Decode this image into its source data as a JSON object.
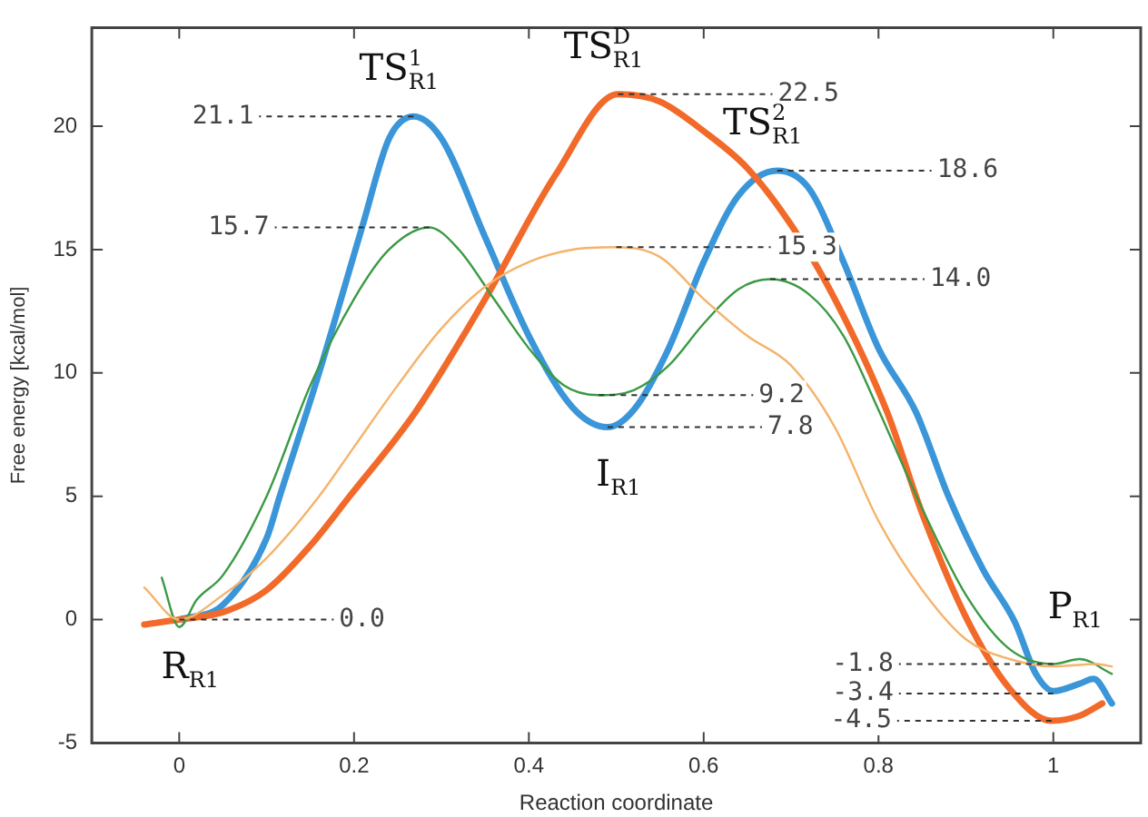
{
  "chart_data": {
    "type": "line",
    "xlabel": "Reaction coordinate",
    "ylabel": "Free energy [kcal/mol]",
    "xlim": [
      -0.1,
      1.1
    ],
    "xticks": [
      0,
      0.2,
      0.4,
      0.6,
      0.8,
      1
    ],
    "ylim": [
      -5,
      24
    ],
    "yticks": [
      -5,
      0,
      5,
      10,
      15,
      20
    ],
    "grid": false,
    "legend": false,
    "marker": "none",
    "line_style": "solid",
    "series": [
      {
        "color": "#f5b36b",
        "x": [
          -0.04,
          0,
          0.05,
          0.1,
          0.16,
          0.2,
          0.25,
          0.3,
          0.35,
          0.4,
          0.45,
          0.5,
          0.55,
          0.6,
          0.65,
          0.7,
          0.75,
          0.8,
          0.85,
          0.9,
          0.95,
          1.0,
          1.05,
          1.067
        ],
        "values": [
          1.3,
          0,
          1,
          2.5,
          5,
          7,
          9.5,
          11.8,
          13.5,
          14.5,
          15,
          15.1,
          14.7,
          13,
          11.5,
          10.3,
          7.8,
          4,
          1.2,
          -0.8,
          -1.6,
          -1.9,
          -1.8,
          -1.9
        ]
      },
      {
        "color": "#3a9a44",
        "x": [
          -0.02,
          0,
          0.02,
          0.05,
          0.1,
          0.15,
          0.2,
          0.24,
          0.286,
          0.32,
          0.36,
          0.4,
          0.44,
          0.48,
          0.52,
          0.56,
          0.6,
          0.64,
          0.676,
          0.72,
          0.76,
          0.8,
          0.85,
          0.9,
          0.95,
          1.0,
          1.03,
          1.067
        ],
        "values": [
          1.7,
          -0.3,
          0.8,
          1.8,
          5,
          9.5,
          13,
          15,
          15.9,
          15,
          13,
          11,
          9.5,
          9.1,
          9.3,
          10.3,
          12,
          13.4,
          13.8,
          13.2,
          11.5,
          8.5,
          4.5,
          1,
          -1.2,
          -1.8,
          -1.6,
          -2.2
        ]
      },
      {
        "color": "#f26a2a",
        "x": [
          -0.04,
          0,
          0.05,
          0.1,
          0.15,
          0.195,
          0.27,
          0.35,
          0.43,
          0.502,
          0.55,
          0.6,
          0.65,
          0.7,
          0.75,
          0.81,
          0.85,
          0.9,
          0.95,
          0.998,
          1.03,
          1.056
        ],
        "values": [
          -0.2,
          0,
          0.3,
          1.2,
          3,
          5,
          8.4,
          13,
          18,
          21.3,
          21,
          19.8,
          18.3,
          16,
          13,
          8.4,
          4.3,
          0.1,
          -2.8,
          -4.1,
          -3.9,
          -3.4
        ]
      },
      {
        "color": "#3a96d8",
        "x": [
          0,
          0.05,
          0.1,
          0.115,
          0.16,
          0.21,
          0.24,
          0.268,
          0.3,
          0.35,
          0.4,
          0.45,
          0.49,
          0.52,
          0.56,
          0.6,
          0.64,
          0.684,
          0.72,
          0.76,
          0.8,
          0.843,
          0.88,
          0.92,
          0.956,
          0.98,
          1.0,
          1.03,
          1.046,
          1.067
        ],
        "values": [
          0,
          0.6,
          3.3,
          5,
          10,
          16,
          19.5,
          20.4,
          19.5,
          15.5,
          11.5,
          8.6,
          7.8,
          8.5,
          11,
          14.5,
          17.2,
          18.2,
          17.5,
          14.5,
          11,
          8.4,
          5,
          2,
          -0.1,
          -2.2,
          -2.9,
          -2.6,
          -2.4,
          -3.4
        ]
      }
    ],
    "annotations": [
      {
        "text": "21.1",
        "x": 0.268,
        "y": 20.4
      },
      {
        "text": "15.7",
        "x": 0.286,
        "y": 15.9
      },
      {
        "text": "22.5",
        "x": 0.502,
        "y": 21.3
      },
      {
        "text": "15.3",
        "x": 0.5,
        "y": 15.1
      },
      {
        "text": "18.6",
        "x": 0.684,
        "y": 18.2
      },
      {
        "text": "14.0",
        "x": 0.676,
        "y": 13.8
      },
      {
        "text": "9.2",
        "x": 0.48,
        "y": 9.1
      },
      {
        "text": "7.8",
        "x": 0.49,
        "y": 7.8
      },
      {
        "text": "0.0",
        "x": 0,
        "y": 0
      },
      {
        "text": "-1.8",
        "x": 1.0,
        "y": -1.8
      },
      {
        "text": "-3.4",
        "x": 1.0,
        "y": -3.0
      },
      {
        "text": "-4.5",
        "x": 0.998,
        "y": -4.1
      },
      {
        "text": "TS$^{1}$$_{R1}$",
        "x": 0.268,
        "y": 20.4
      },
      {
        "text": "TS$^{D}$$_{R1}$",
        "x": 0.502,
        "y": 21.3
      },
      {
        "text": "TS$^{2}$$_{R1}$",
        "x": 0.684,
        "y": 18.2
      },
      {
        "text": "I$_{R1}$",
        "x": 0.49,
        "y": 7.8
      },
      {
        "text": "R$_{R1}$",
        "x": 0,
        "y": 0
      },
      {
        "text": "P$_{R1}$",
        "x": 1.0,
        "y": -2.9
      }
    ]
  }
}
